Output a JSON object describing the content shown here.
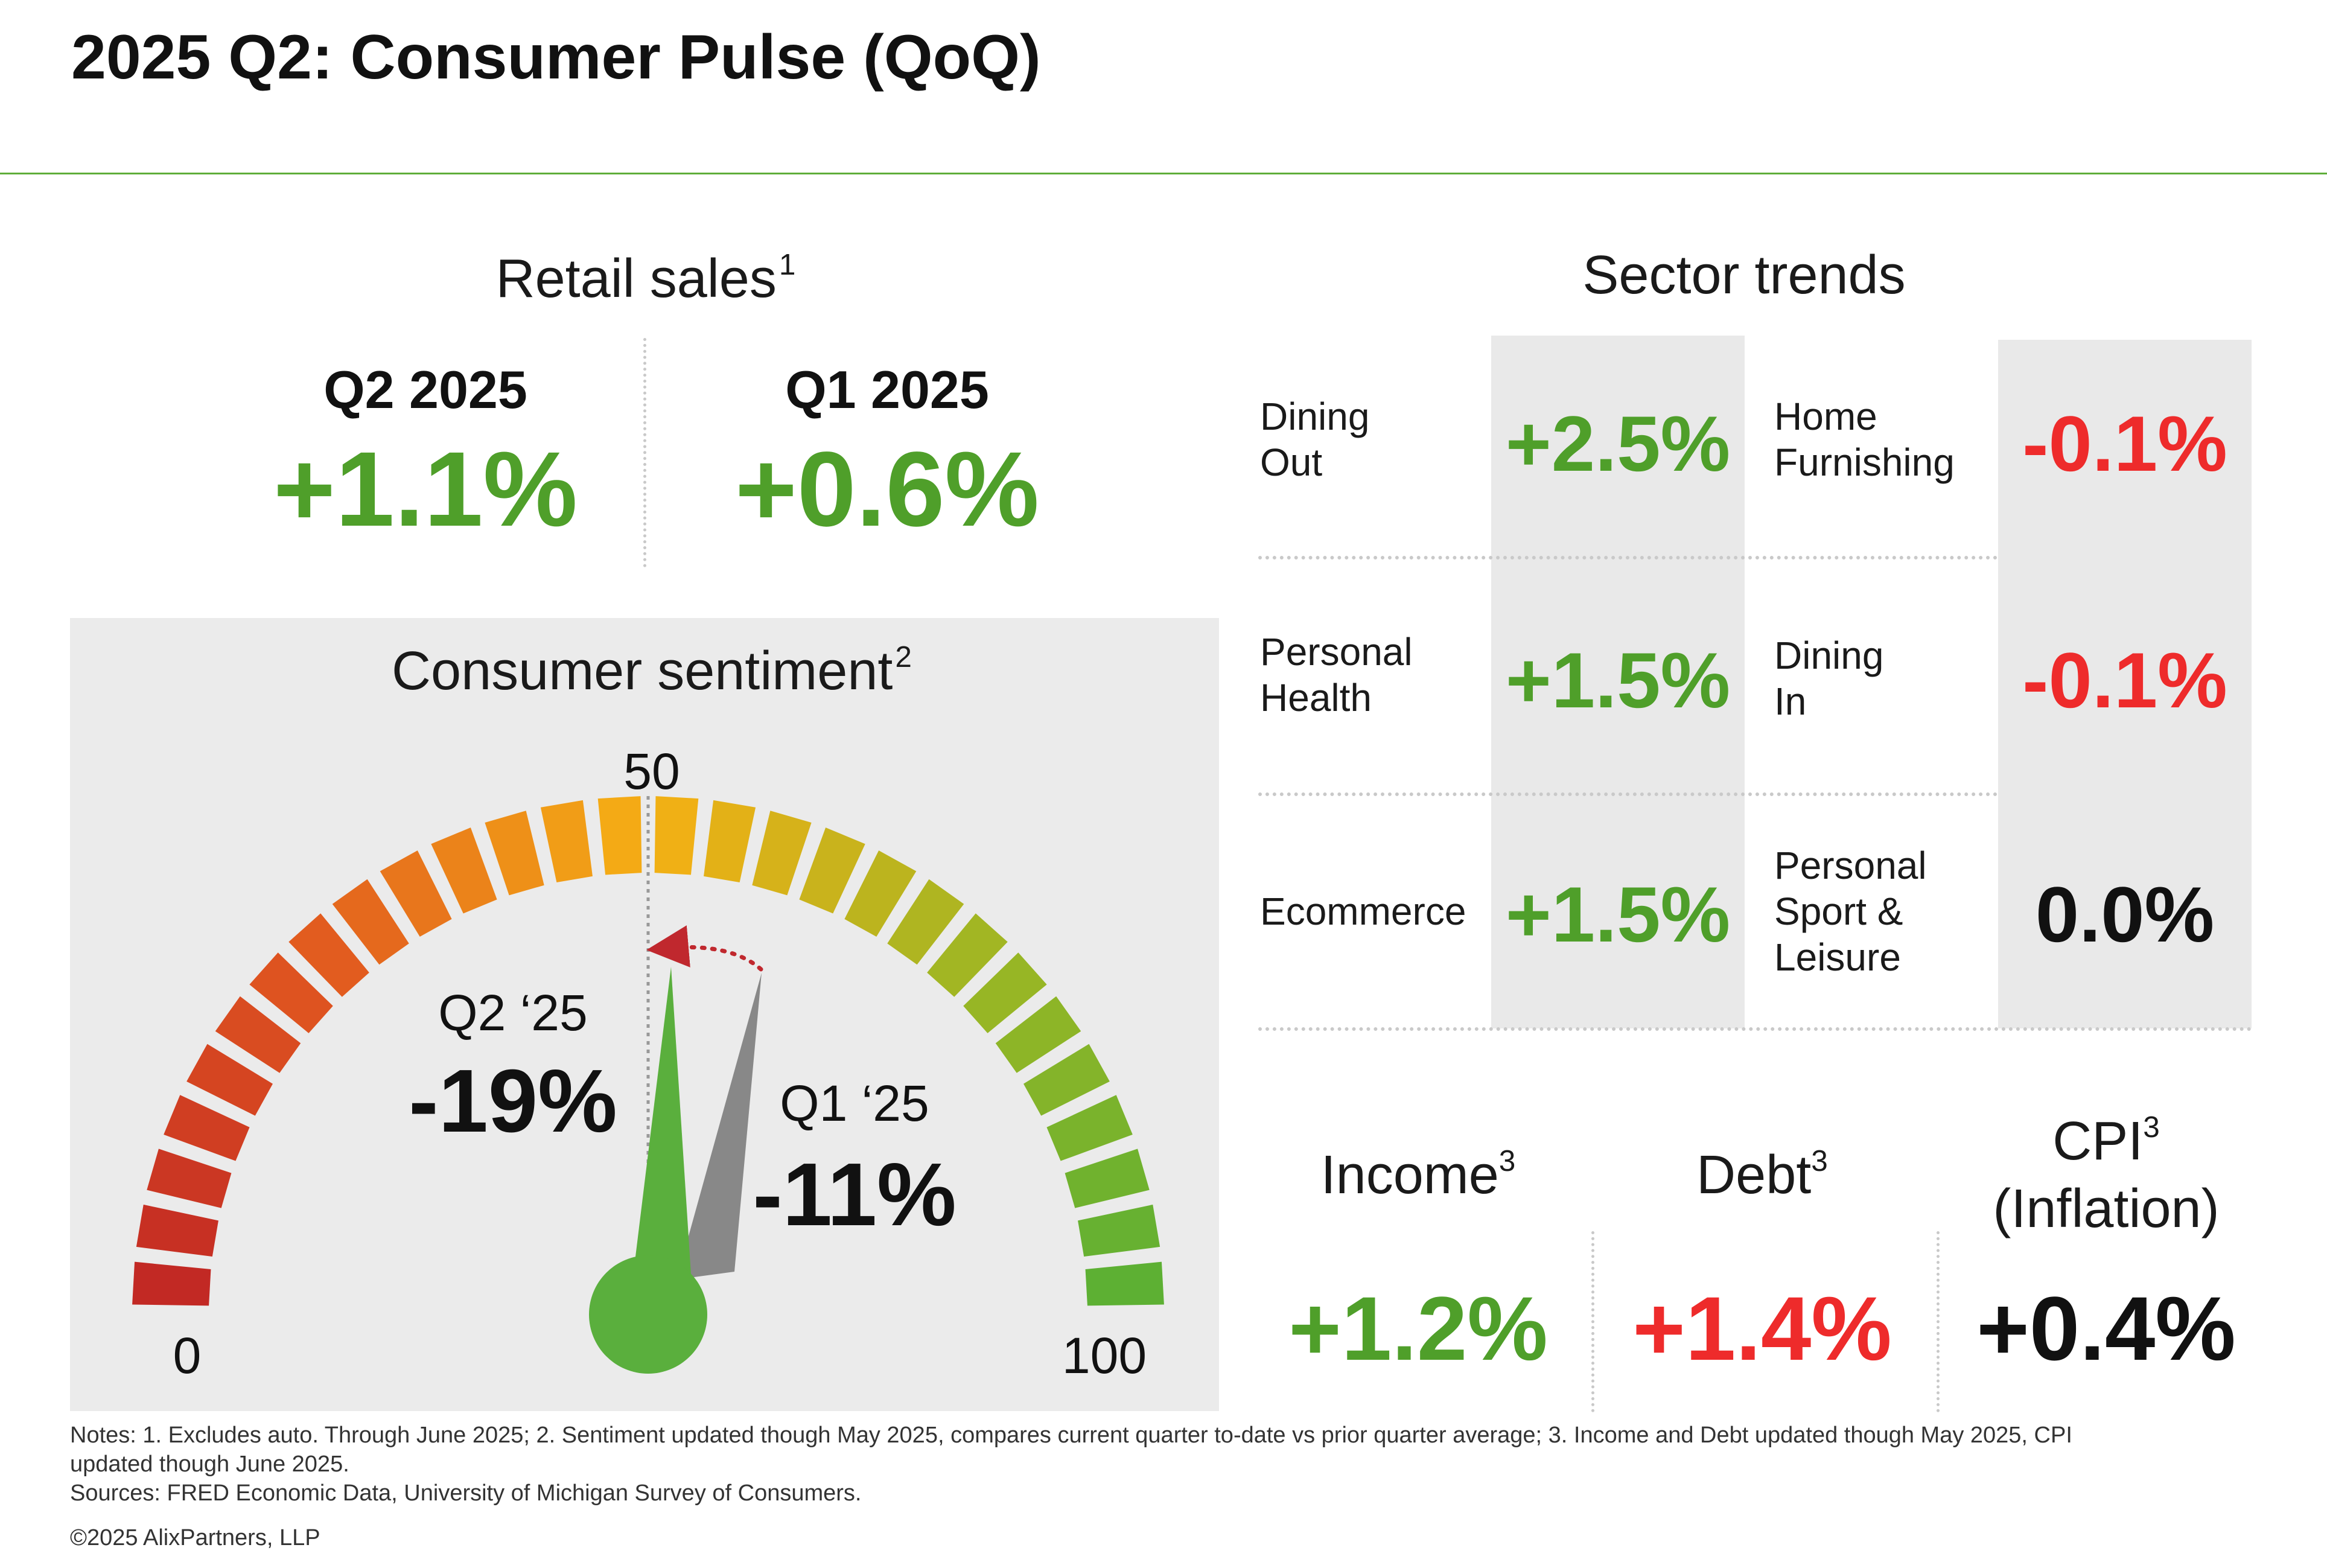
{
  "title": "2025 Q2: Consumer Pulse (QoQ)",
  "colors": {
    "positive": "#4f9f2a",
    "negative": "#ee2b2b",
    "neutral": "#111111",
    "rule": "#5fae3a",
    "panel": "#ebebeb"
  },
  "retail": {
    "heading": "Retail sales",
    "note_ref": "1",
    "periods": [
      {
        "label": "Q2 2025",
        "value": "+1.1%",
        "tone": "positive"
      },
      {
        "label": "Q1 2025",
        "value": "+0.6%",
        "tone": "positive"
      }
    ]
  },
  "sentiment": {
    "heading": "Consumer sentiment",
    "note_ref": "2",
    "scale": {
      "min_label": "0",
      "mid_label": "50",
      "max_label": "100"
    },
    "current": {
      "label": "Q2 ‘25",
      "value": "-19%"
    },
    "previous": {
      "label": "Q1 ‘25",
      "value": "-11%"
    }
  },
  "sectors": {
    "heading": "Sector trends",
    "items": [
      {
        "label": "Dining Out",
        "lines": [
          "Dining",
          "Out"
        ],
        "value": "+2.5%",
        "tone": "positive"
      },
      {
        "label": "Home Furnishing",
        "lines": [
          "Home",
          "Furnishing"
        ],
        "value": "-0.1%",
        "tone": "negative"
      },
      {
        "label": "Personal Health",
        "lines": [
          "Personal",
          "Health"
        ],
        "value": "+1.5%",
        "tone": "positive"
      },
      {
        "label": "Dining In",
        "lines": [
          "Dining",
          "In"
        ],
        "value": "-0.1%",
        "tone": "negative"
      },
      {
        "label": "Ecommerce",
        "lines": [
          "Ecommerce"
        ],
        "value": "+1.5%",
        "tone": "positive"
      },
      {
        "label": "Personal Sport & Leisure",
        "lines": [
          "Personal",
          "Sport &",
          "Leisure"
        ],
        "value": "0.0%",
        "tone": "neutral"
      }
    ]
  },
  "macro": [
    {
      "label": "Income",
      "note_ref": "3",
      "value": "+1.2%",
      "tone": "positive"
    },
    {
      "label": "Debt",
      "note_ref": "3",
      "value": "+1.4%",
      "tone": "negative"
    },
    {
      "label": "CPI",
      "note_ref": "3",
      "sublabel": "(Inflation)",
      "value": "+0.4%",
      "tone": "neutral"
    }
  ],
  "footer": {
    "notes_line1": "Notes: 1. Excludes auto. Through June 2025; 2. Sentiment updated though May 2025, compares current quarter to-date vs prior quarter average; 3. Income and Debt updated though May 2025, CPI",
    "notes_line2": "updated though June 2025.",
    "sources": "Sources: FRED Economic Data, University of Michigan Survey of Consumers.",
    "copyright": "©2025 AlixPartners, LLP"
  }
}
